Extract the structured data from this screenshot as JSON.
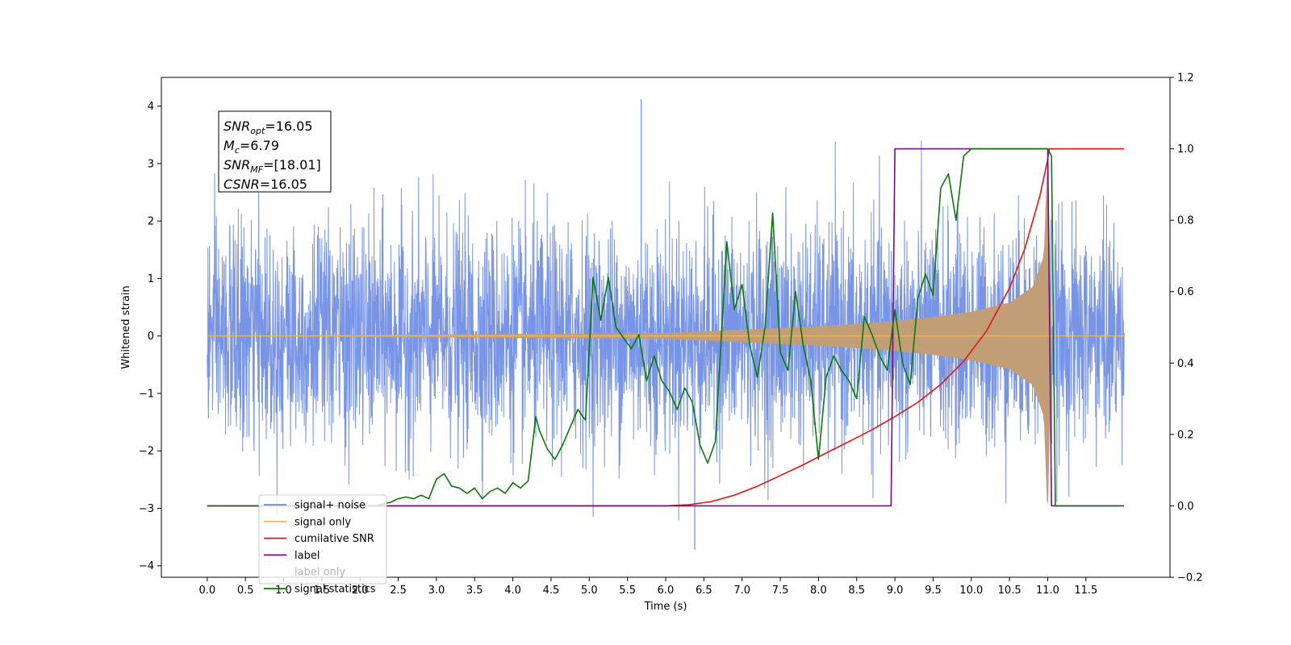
{
  "chart_data": {
    "type": "line",
    "title": "",
    "xlabel": "Time (s)",
    "ylabel_left": "Whitened strain",
    "ylabel_right": "",
    "xlim": [
      -0.6,
      12.6
    ],
    "ylim_left": [
      -4.2,
      4.5
    ],
    "ylim_right": [
      -0.2,
      1.2
    ],
    "x_ticks": [
      0.0,
      0.5,
      1.0,
      1.5,
      2.0,
      2.5,
      3.0,
      3.5,
      4.0,
      4.5,
      5.0,
      5.5,
      6.0,
      6.5,
      7.0,
      7.5,
      8.0,
      8.5,
      9.0,
      9.5,
      10.0,
      10.5,
      11.0,
      11.5
    ],
    "x_tick_labels": [
      "0.0",
      "0.5",
      "1.0",
      "1.5",
      "2.0",
      "2.5",
      "3.0",
      "3.5",
      "4.0",
      "4.5",
      "5.0",
      "5.5",
      "6.0",
      "6.5",
      "7.0",
      "7.5",
      "8.0",
      "8.5",
      "9.0",
      "9.5",
      "10.0",
      "10.5",
      "11.0",
      "11.5"
    ],
    "y_ticks_left": [
      -4,
      -3,
      -2,
      -1,
      0,
      1,
      2,
      3,
      4
    ],
    "y_tick_labels_left": [
      "−4",
      "−3",
      "−2",
      "−1",
      "0",
      "1",
      "2",
      "3",
      "4"
    ],
    "y_ticks_right": [
      -0.2,
      0.0,
      0.2,
      0.4,
      0.6,
      0.8,
      1.0,
      1.2
    ],
    "y_tick_labels_right": [
      "−0.2",
      "0.0",
      "0.2",
      "0.4",
      "0.6",
      "0.8",
      "1.0",
      "1.2"
    ],
    "grid": false,
    "legend_position": "bottom-left",
    "annotation": [
      {
        "base": "SNR",
        "sub": "opt",
        "value": "=16.05"
      },
      {
        "base": "M",
        "sub": "c",
        "value": "=6.79"
      },
      {
        "base": "SNR",
        "sub": "MF",
        "value": "=[18.01]"
      },
      {
        "base": "CSNR",
        "sub": "",
        "value": "=16.05"
      }
    ],
    "series": [
      {
        "name": "signal+ noise",
        "axis": "left",
        "color": "#6b8be4",
        "kind": "noise",
        "x_range": [
          0.0,
          12.0
        ],
        "amplitude_sigma": 0.95,
        "extremes": {
          "max": 4.12,
          "max_at": 5.68,
          "min": -3.72,
          "min_at": 6.38
        }
      },
      {
        "name": "signal only",
        "axis": "left",
        "color": "#f5b85f",
        "fill_color": "#c29e76",
        "kind": "chirp_envelope",
        "envelope": {
          "x": [
            0.0,
            6.0,
            6.5,
            7.0,
            7.5,
            8.0,
            8.5,
            9.0,
            9.5,
            10.0,
            10.5,
            10.8,
            10.95,
            11.0,
            11.05,
            12.0
          ],
          "y": [
            0.0,
            0.05,
            0.08,
            0.11,
            0.14,
            0.17,
            0.21,
            0.26,
            0.33,
            0.42,
            0.58,
            0.85,
            1.4,
            3.3,
            0.0,
            0.0
          ]
        }
      },
      {
        "name": "cumilative SNR",
        "axis": "right",
        "color": "#e8120e",
        "x": [
          0.0,
          6.0,
          6.3,
          6.6,
          6.9,
          7.2,
          7.5,
          7.8,
          8.1,
          8.4,
          8.7,
          9.0,
          9.3,
          9.6,
          9.9,
          10.2,
          10.5,
          10.7,
          10.9,
          11.0,
          11.02,
          12.0
        ],
        "y": [
          0.0,
          0.0,
          0.003,
          0.012,
          0.03,
          0.055,
          0.085,
          0.115,
          0.148,
          0.18,
          0.213,
          0.25,
          0.29,
          0.34,
          0.405,
          0.49,
          0.61,
          0.72,
          0.87,
          0.97,
          1.0,
          1.0
        ]
      },
      {
        "name": "label",
        "axis": "right",
        "color": "#7a0a8a",
        "x": [
          0.0,
          8.95,
          9.0,
          11.0,
          11.05,
          12.0
        ],
        "y": [
          0.0,
          0.0,
          1.0,
          1.0,
          0.0,
          0.0
        ]
      },
      {
        "name": "label only",
        "axis": "right",
        "color": "#6b6b6b",
        "legend_only": true,
        "x": [],
        "y": []
      },
      {
        "name": "signal statistics",
        "axis": "right",
        "color": "#0a7a0a",
        "x": [
          0.0,
          2.2,
          2.4,
          2.5,
          2.6,
          2.7,
          2.8,
          2.9,
          3.0,
          3.1,
          3.2,
          3.3,
          3.4,
          3.5,
          3.6,
          3.7,
          3.8,
          3.9,
          4.0,
          4.1,
          4.2,
          4.3,
          4.35,
          4.45,
          4.55,
          4.65,
          4.75,
          4.85,
          4.95,
          5.05,
          5.15,
          5.25,
          5.35,
          5.45,
          5.55,
          5.65,
          5.75,
          5.85,
          5.95,
          6.05,
          6.15,
          6.25,
          6.35,
          6.45,
          6.55,
          6.65,
          6.8,
          6.9,
          7.0,
          7.1,
          7.2,
          7.3,
          7.4,
          7.5,
          7.6,
          7.7,
          7.8,
          7.9,
          8.0,
          8.1,
          8.2,
          8.3,
          8.4,
          8.5,
          8.6,
          8.7,
          8.8,
          8.9,
          9.0,
          9.1,
          9.2,
          9.3,
          9.4,
          9.5,
          9.6,
          9.7,
          9.8,
          9.9,
          10.0,
          10.1,
          10.2,
          11.0,
          11.05,
          11.1,
          11.95
        ],
        "y": [
          0.0,
          0.0,
          0.01,
          0.02,
          0.025,
          0.02,
          0.03,
          0.02,
          0.075,
          0.09,
          0.055,
          0.05,
          0.035,
          0.05,
          0.02,
          0.04,
          0.05,
          0.035,
          0.065,
          0.05,
          0.07,
          0.25,
          0.21,
          0.16,
          0.13,
          0.17,
          0.22,
          0.27,
          0.24,
          0.64,
          0.52,
          0.64,
          0.5,
          0.47,
          0.44,
          0.48,
          0.35,
          0.42,
          0.35,
          0.32,
          0.27,
          0.33,
          0.29,
          0.17,
          0.12,
          0.18,
          0.74,
          0.55,
          0.62,
          0.45,
          0.36,
          0.5,
          0.82,
          0.43,
          0.38,
          0.6,
          0.45,
          0.35,
          0.13,
          0.36,
          0.42,
          0.38,
          0.35,
          0.3,
          0.53,
          0.48,
          0.42,
          0.38,
          0.55,
          0.4,
          0.34,
          0.58,
          0.65,
          0.59,
          0.89,
          0.93,
          0.8,
          0.98,
          1.0,
          1.0,
          1.0,
          1.0,
          0.98,
          0.0,
          0.0
        ]
      }
    ]
  }
}
